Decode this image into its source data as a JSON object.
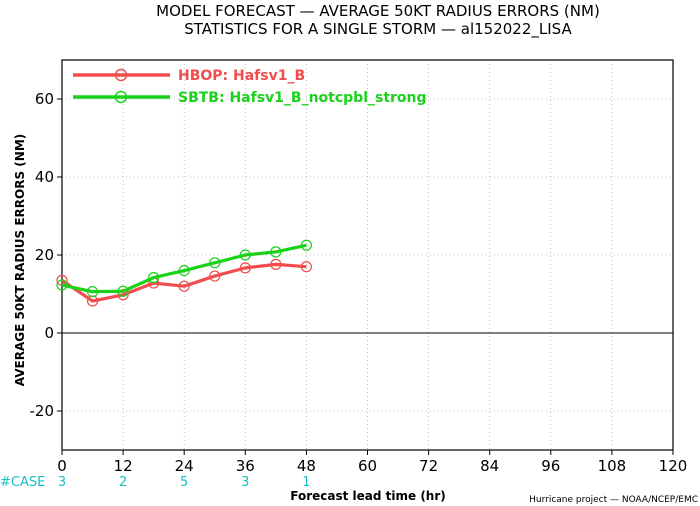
{
  "chart_data": {
    "type": "line",
    "title": "MODEL FORECAST — AVERAGE 50KT RADIUS ERRORS (NM)",
    "subtitle": "STATISTICS FOR A SINGLE STORM — al152022_LISA",
    "xlabel": "Forecast lead time (hr)",
    "ylabel": "AVERAGE 50KT RADIUS ERRORS (NM)",
    "xlim": [
      0,
      120
    ],
    "ylim": [
      -30,
      70
    ],
    "xticks": [
      0,
      12,
      24,
      36,
      48,
      60,
      72,
      84,
      96,
      108,
      120
    ],
    "yticks": [
      -20,
      0,
      20,
      40,
      60
    ],
    "grid": true,
    "legend_position": "top-left",
    "series": [
      {
        "name": "HBOP: Hafsv1_B",
        "color": "#f24c4c",
        "x": [
          0,
          6,
          12,
          18,
          24,
          30,
          36,
          42,
          48
        ],
        "y": [
          13.5,
          8.2,
          9.8,
          12.8,
          12.0,
          14.6,
          16.7,
          17.6,
          17.0
        ]
      },
      {
        "name": "SBTB: Hafsv1_B_notcpbl_strong",
        "color": "#19d219",
        "x": [
          0,
          6,
          12,
          18,
          24,
          30,
          36,
          42,
          48
        ],
        "y": [
          12.3,
          10.6,
          10.7,
          14.2,
          16.0,
          18.0,
          20.0,
          20.8,
          22.5
        ]
      }
    ],
    "case_label": "#CASE",
    "cases": [
      {
        "x": 0,
        "count": "3"
      },
      {
        "x": 12,
        "count": "2"
      },
      {
        "x": 24,
        "count": "5"
      },
      {
        "x": 36,
        "count": "3"
      },
      {
        "x": 48,
        "count": "1"
      }
    ]
  },
  "credit": "Hurricane project — NOAA/NCEP/EMC"
}
